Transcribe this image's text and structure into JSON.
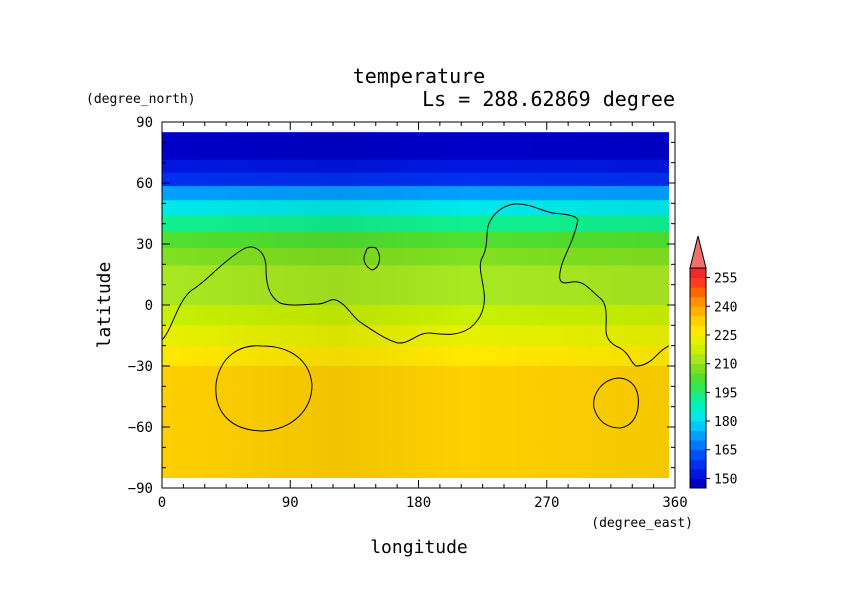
{
  "chart_data": {
    "type": "heatmap",
    "title": "temperature",
    "subtitle": "Ls = 288.62869 degree",
    "xlabel": "longitude",
    "ylabel": "latitude",
    "xunit": "(degree_east)",
    "yunit": "(degree_north)",
    "xlim": [
      0,
      360
    ],
    "ylim": [
      -90,
      90
    ],
    "data_lat_range": [
      -85,
      85
    ],
    "xticks": [
      0,
      90,
      180,
      270,
      360
    ],
    "yticks": [
      90,
      60,
      30,
      0,
      -30,
      -60,
      -90
    ],
    "xtick_labels": [
      "0",
      "90",
      "180",
      "270",
      "360"
    ],
    "ytick_labels": [
      "90",
      "60",
      "30",
      "0",
      "−30",
      "−60",
      "−90"
    ],
    "colorbar": {
      "levels": [
        145,
        150,
        155,
        160,
        165,
        170,
        175,
        180,
        185,
        190,
        195,
        200,
        205,
        210,
        215,
        220,
        225,
        230,
        235,
        240,
        245,
        250,
        255,
        260
      ],
      "tick_values": [
        150,
        165,
        180,
        195,
        210,
        225,
        240,
        255
      ],
      "tick_labels": [
        "150",
        "165",
        "180",
        "195",
        "210",
        "225",
        "240",
        "255"
      ],
      "colors": [
        "#0000c8",
        "#0016e0",
        "#0030f0",
        "#0050ff",
        "#0078ff",
        "#00a0ff",
        "#00c8ff",
        "#00e8e8",
        "#00f0c0",
        "#10f090",
        "#30e850",
        "#50e030",
        "#80e020",
        "#a8e820",
        "#c8f000",
        "#e8f000",
        "#ffe800",
        "#ffd000",
        "#ffb000",
        "#ff9000",
        "#ff6400",
        "#ff3c1e",
        "#f02828"
      ],
      "extend_max": true,
      "extend_color": "#f07070"
    },
    "temperature_by_latitude": [
      {
        "lat": 85,
        "value": 147
      },
      {
        "lat": 75,
        "value": 148
      },
      {
        "lat": 68,
        "value": 150
      },
      {
        "lat": 62,
        "value": 158
      },
      {
        "lat": 55,
        "value": 172
      },
      {
        "lat": 48,
        "value": 182
      },
      {
        "lat": 40,
        "value": 192
      },
      {
        "lat": 32,
        "value": 200
      },
      {
        "lat": 24,
        "value": 205
      },
      {
        "lat": 15,
        "value": 210
      },
      {
        "lat": 5,
        "value": 213
      },
      {
        "lat": -5,
        "value": 216
      },
      {
        "lat": -15,
        "value": 220
      },
      {
        "lat": -25,
        "value": 226
      },
      {
        "lat": -35,
        "value": 230
      },
      {
        "lat": -45,
        "value": 231
      },
      {
        "lat": -55,
        "value": 231
      },
      {
        "lat": -65,
        "value": 230
      },
      {
        "lat": -75,
        "value": 231
      },
      {
        "lat": -85,
        "value": 232
      }
    ]
  }
}
